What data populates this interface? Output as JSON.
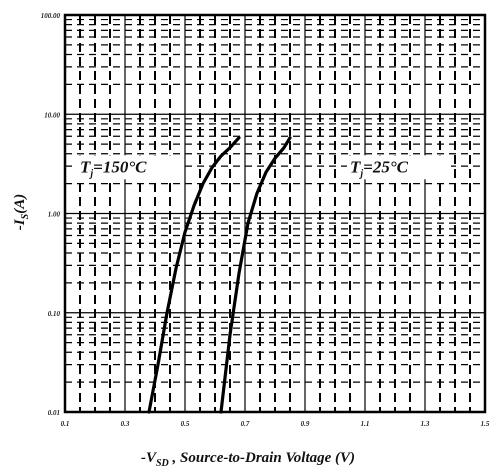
{
  "chart_data": {
    "type": "line",
    "xlabel": "-V",
    "xlabel_sub": "SD",
    "xlabel_rest": " , Source-to-Drain Voltage (V)",
    "ylabel": "-I",
    "ylabel_sub": "S",
    "ylabel_rest": "(A)",
    "xlim": [
      0.1,
      1.5
    ],
    "ylim": [
      0.01,
      100
    ],
    "y_scale": "log",
    "grid": true,
    "x_ticks": [
      0.1,
      0.3,
      0.5,
      0.7,
      0.9,
      1.1,
      1.3,
      1.5
    ],
    "x_tick_labels": [
      "0.1",
      "0.3",
      "0.5",
      "0.7",
      "0.9",
      "1.1",
      "1.3",
      "1.5"
    ],
    "y_ticks": [
      0.01,
      0.1,
      1,
      10,
      100
    ],
    "y_tick_labels": [
      "0.01",
      "0.10",
      "1.00",
      "10.00",
      "100.00"
    ],
    "series": [
      {
        "name": "Tj=150°C",
        "x": [
          0.38,
          0.41,
          0.44,
          0.47,
          0.5,
          0.53,
          0.56,
          0.59,
          0.62,
          0.65,
          0.68
        ],
        "y": [
          0.01,
          0.03,
          0.1,
          0.28,
          0.65,
          1.2,
          2.0,
          2.9,
          3.8,
          4.6,
          5.8
        ]
      },
      {
        "name": "Tj=25°C",
        "x": [
          0.62,
          0.65,
          0.68,
          0.71,
          0.74,
          0.77,
          0.8,
          0.83,
          0.85
        ],
        "y": [
          0.01,
          0.06,
          0.25,
          0.8,
          1.6,
          2.6,
          3.6,
          4.6,
          5.8
        ]
      }
    ],
    "annotations": [
      {
        "main": "T",
        "sub": "j",
        "rest": "=150°C",
        "x": 0.15,
        "y": 2.6
      },
      {
        "main": "T",
        "sub": "j",
        "rest": "=25°C",
        "x": 1.05,
        "y": 2.6
      }
    ]
  }
}
